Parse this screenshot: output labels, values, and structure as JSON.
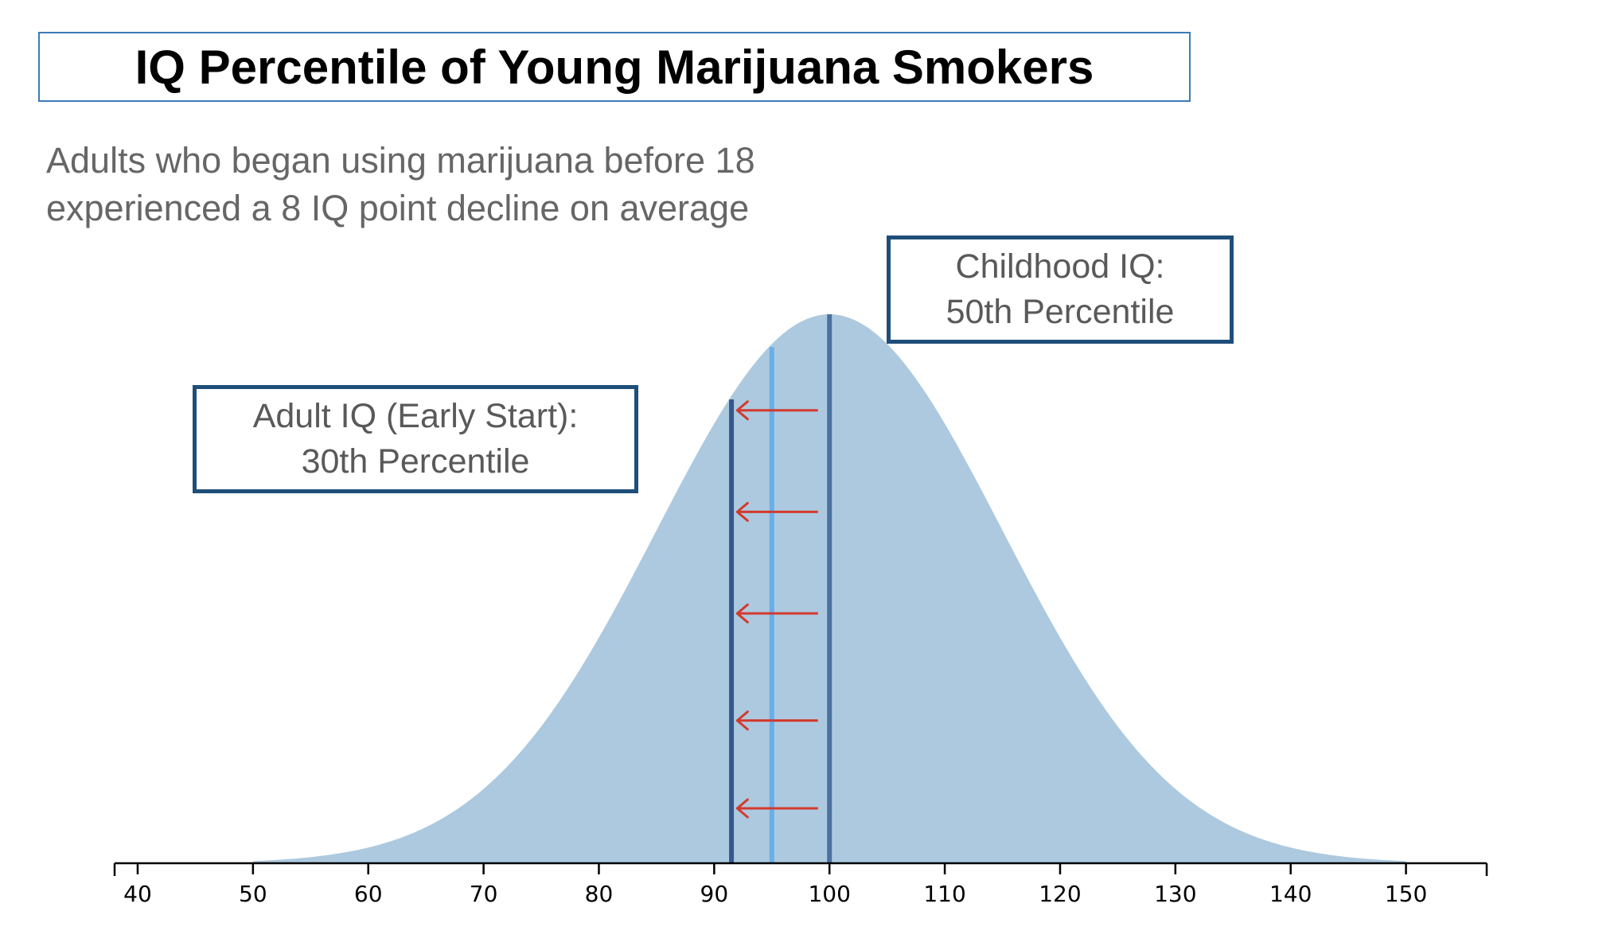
{
  "title": "IQ Percentile of Young Marijuana Smokers",
  "subtitle": "Adults who began using marijuana before 18 experienced a 8 IQ point decline on average",
  "callouts": {
    "childhood": {
      "line1": "Childhood IQ:",
      "line2": "50th Percentile"
    },
    "adult": {
      "line1": "Adult IQ (Early Start):",
      "line2": "30th Percentile"
    }
  },
  "chart_data": {
    "type": "area",
    "distribution": {
      "name": "",
      "mean": 100,
      "sd": 15,
      "color": "#adc9df"
    },
    "xlim": [
      38,
      157
    ],
    "ylim": [
      0,
      1
    ],
    "x_ticks": [
      40,
      50,
      60,
      70,
      80,
      90,
      100,
      110,
      120,
      130,
      140,
      150
    ],
    "tick_labels": [
      "40",
      "50",
      "60",
      "70",
      "80",
      "90",
      "100",
      "110",
      "120",
      "130",
      "140",
      "150"
    ],
    "y_axis_visible": false,
    "grid": false,
    "vertical_lines": [
      {
        "x": 100,
        "height_fraction": 1.0,
        "color": "#4a71a0"
      },
      {
        "x": 95,
        "height_fraction": 0.94,
        "color": "#6aaee8"
      },
      {
        "x": 91.5,
        "height_fraction": 0.845,
        "color": "#35588c"
      }
    ],
    "arrows": {
      "from_x": 99,
      "to_x": 92,
      "color": "#d23a2e",
      "heights": [
        0.825,
        0.64,
        0.455,
        0.26,
        0.1
      ]
    }
  }
}
